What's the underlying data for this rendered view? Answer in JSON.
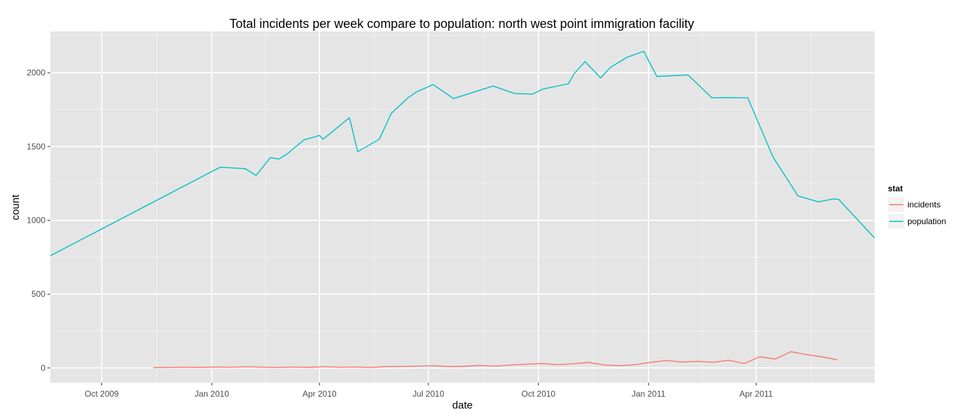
{
  "chart_data": {
    "type": "line",
    "title": "Total incidents per week compare to population: north west point immigration facility",
    "xlabel": "date",
    "ylabel": "count",
    "x_axis_type": "date",
    "xlim": [
      "2009-08-19",
      "2011-07-09"
    ],
    "ylim": [
      -100,
      2280
    ],
    "grid": true,
    "x_ticks": [
      {
        "date": "2009-10-01",
        "label": "Oct 2009"
      },
      {
        "date": "2010-01-01",
        "label": "Jan 2010"
      },
      {
        "date": "2010-04-01",
        "label": "Apr 2010"
      },
      {
        "date": "2010-07-01",
        "label": "Jul 2010"
      },
      {
        "date": "2010-10-01",
        "label": "Oct 2010"
      },
      {
        "date": "2011-01-01",
        "label": "Jan 2011"
      },
      {
        "date": "2011-04-01",
        "label": "Apr 2011"
      }
    ],
    "y_ticks": [
      0,
      500,
      1000,
      1500,
      2000
    ],
    "legend": {
      "title": "stat",
      "placement": "right"
    },
    "series": [
      {
        "name": "incidents",
        "color": "#F8766D",
        "points": [
          [
            "2009-11-13",
            2
          ],
          [
            "2009-11-26",
            3
          ],
          [
            "2009-12-09",
            5
          ],
          [
            "2009-12-22",
            4
          ],
          [
            "2010-01-04",
            6
          ],
          [
            "2010-01-17",
            5
          ],
          [
            "2010-01-30",
            8
          ],
          [
            "2010-02-12",
            5
          ],
          [
            "2010-02-25",
            3
          ],
          [
            "2010-03-10",
            6
          ],
          [
            "2010-03-23",
            4
          ],
          [
            "2010-04-05",
            8
          ],
          [
            "2010-04-18",
            5
          ],
          [
            "2010-05-01",
            6
          ],
          [
            "2010-05-14",
            3
          ],
          [
            "2010-05-27",
            9
          ],
          [
            "2010-06-09",
            10
          ],
          [
            "2010-06-22",
            12
          ],
          [
            "2010-07-05",
            15
          ],
          [
            "2010-07-18",
            9
          ],
          [
            "2010-07-31",
            11
          ],
          [
            "2010-08-13",
            17
          ],
          [
            "2010-08-26",
            12
          ],
          [
            "2010-09-08",
            20
          ],
          [
            "2010-09-21",
            25
          ],
          [
            "2010-10-04",
            30
          ],
          [
            "2010-10-17",
            22
          ],
          [
            "2010-10-30",
            28
          ],
          [
            "2010-11-12",
            37
          ],
          [
            "2010-11-25",
            20
          ],
          [
            "2010-12-08",
            15
          ],
          [
            "2010-12-21",
            22
          ],
          [
            "2011-01-03",
            38
          ],
          [
            "2011-01-16",
            50
          ],
          [
            "2011-01-29",
            40
          ],
          [
            "2011-02-11",
            45
          ],
          [
            "2011-02-24",
            38
          ],
          [
            "2011-03-09",
            52
          ],
          [
            "2011-03-22",
            30
          ],
          [
            "2011-04-04",
            75
          ],
          [
            "2011-04-17",
            60
          ],
          [
            "2011-04-30",
            110
          ],
          [
            "2011-05-13",
            90
          ],
          [
            "2011-05-26",
            75
          ],
          [
            "2011-06-08",
            55
          ]
        ]
      },
      {
        "name": "population",
        "color": "#00BFC4",
        "points": [
          [
            "2009-08-19",
            760
          ],
          [
            "2010-01-08",
            1360
          ],
          [
            "2010-01-29",
            1350
          ],
          [
            "2010-02-07",
            1305
          ],
          [
            "2010-02-19",
            1425
          ],
          [
            "2010-02-26",
            1415
          ],
          [
            "2010-03-05",
            1450
          ],
          [
            "2010-03-19",
            1545
          ],
          [
            "2010-04-01",
            1575
          ],
          [
            "2010-04-04",
            1550
          ],
          [
            "2010-04-26",
            1695
          ],
          [
            "2010-05-03",
            1465
          ],
          [
            "2010-05-21",
            1550
          ],
          [
            "2010-05-31",
            1725
          ],
          [
            "2010-06-14",
            1830
          ],
          [
            "2010-06-21",
            1870
          ],
          [
            "2010-07-05",
            1920
          ],
          [
            "2010-07-22",
            1825
          ],
          [
            "2010-08-24",
            1910
          ],
          [
            "2010-09-11",
            1860
          ],
          [
            "2010-09-26",
            1855
          ],
          [
            "2010-10-05",
            1890
          ],
          [
            "2010-10-26",
            1925
          ],
          [
            "2010-10-31",
            1995
          ],
          [
            "2010-11-09",
            2075
          ],
          [
            "2010-11-15",
            2025
          ],
          [
            "2010-11-22",
            1965
          ],
          [
            "2010-11-30",
            2035
          ],
          [
            "2010-12-14",
            2105
          ],
          [
            "2010-12-28",
            2145
          ],
          [
            "2011-01-08",
            1975
          ],
          [
            "2011-02-03",
            1985
          ],
          [
            "2011-02-23",
            1830
          ],
          [
            "2011-03-05",
            1832
          ],
          [
            "2011-03-25",
            1830
          ],
          [
            "2011-04-15",
            1430
          ],
          [
            "2011-05-06",
            1165
          ],
          [
            "2011-05-23",
            1125
          ],
          [
            "2011-06-04",
            1145
          ],
          [
            "2011-06-09",
            1142
          ],
          [
            "2011-07-09",
            880
          ]
        ]
      }
    ]
  }
}
